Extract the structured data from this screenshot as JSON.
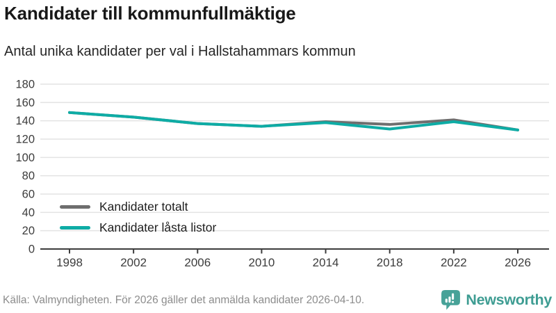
{
  "header": {
    "title": "Kandidater till kommunfullmäktige",
    "subtitle": "Antal unika kandidater per val i Hallstahammars kommun"
  },
  "chart_data": {
    "type": "line",
    "title": "Kandidater till kommunfullmäktige",
    "subtitle": "Antal unika kandidater per val i Hallstahammars kommun",
    "x": [
      1998,
      2002,
      2006,
      2010,
      2014,
      2018,
      2022,
      2026
    ],
    "series": [
      {
        "name": "Kandidater totalt",
        "color": "#6e6e6e",
        "values": [
          149,
          144,
          137,
          134,
          139,
          136,
          141,
          130
        ]
      },
      {
        "name": "Kandidater låsta listor",
        "color": "#0eaca5",
        "values": [
          149,
          144,
          137,
          134,
          138,
          131,
          139,
          130
        ]
      }
    ],
    "ylim": [
      0,
      180
    ],
    "yticks": [
      0,
      20,
      40,
      60,
      80,
      100,
      120,
      140,
      160,
      180
    ],
    "grid": "horizontal",
    "legend_position": "inside-bottom-left",
    "axis_color": "#3c3c3c",
    "grid_color": "#e3e3e3",
    "tick_label_color": "#3c3c3c"
  },
  "footer": {
    "source": "Källa: Valmyndigheten. För 2026 gäller det anmälda kandidater 2026-04-10.",
    "brand": "Newsworthy",
    "brand_color": "#3f9d93",
    "brand_icon": "speech-bubble-bar-chart",
    "brand_icon_color": "#47a298"
  }
}
